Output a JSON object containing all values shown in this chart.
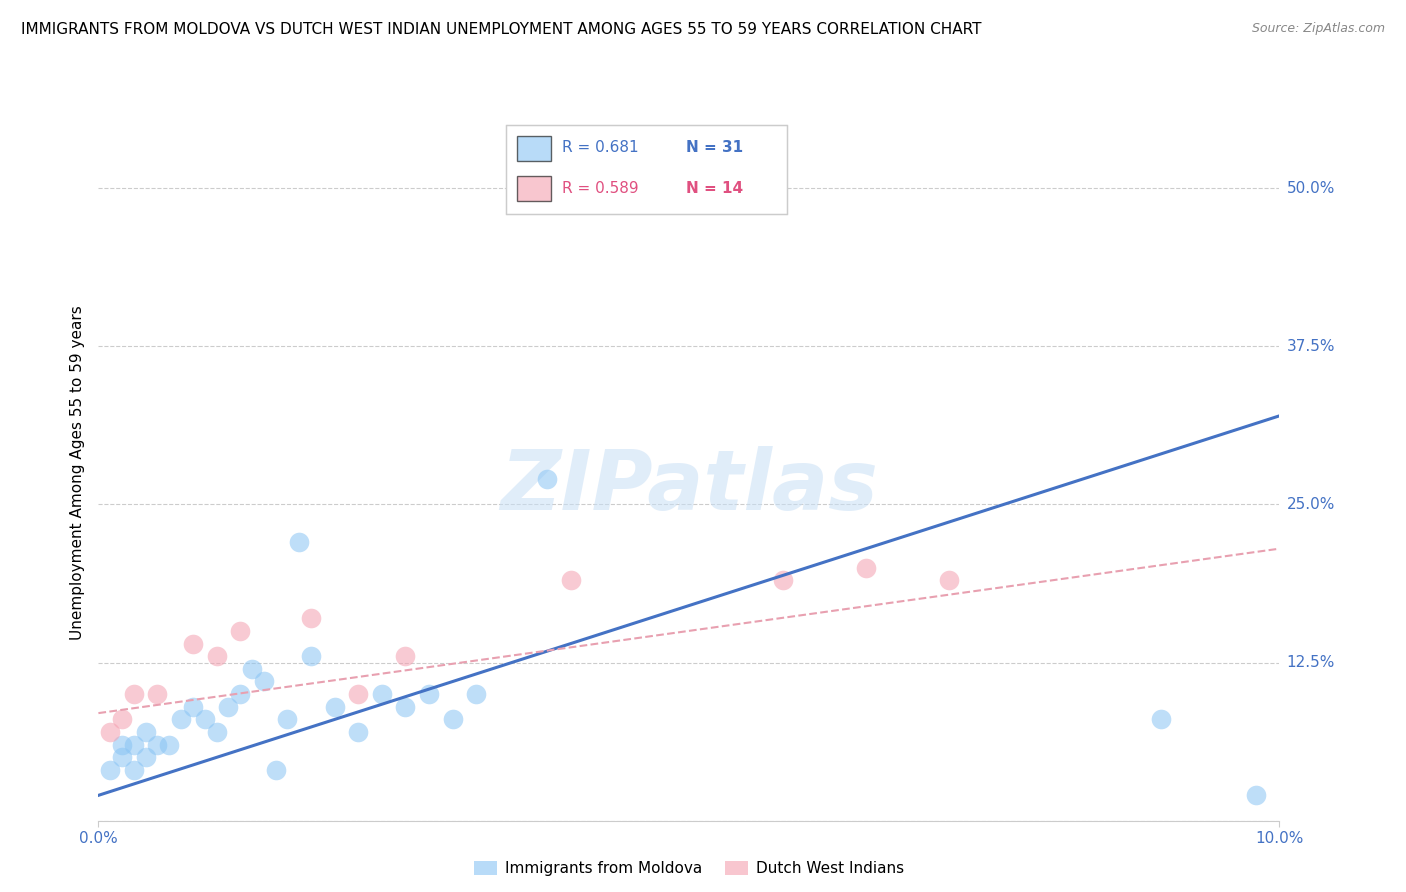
{
  "title": "IMMIGRANTS FROM MOLDOVA VS DUTCH WEST INDIAN UNEMPLOYMENT AMONG AGES 55 TO 59 YEARS CORRELATION CHART",
  "source": "Source: ZipAtlas.com",
  "ylabel": "Unemployment Among Ages 55 to 59 years",
  "xlim": [
    0.0,
    0.1
  ],
  "ylim": [
    0.0,
    0.55
  ],
  "yticks": [
    0.0,
    0.125,
    0.25,
    0.375,
    0.5
  ],
  "ytick_labels": [
    "",
    "12.5%",
    "25.0%",
    "37.5%",
    "50.0%"
  ],
  "watermark": "ZIPatlas",
  "legend_r1": "R = 0.681",
  "legend_n1": "N = 31",
  "legend_r2": "R = 0.589",
  "legend_n2": "N = 14",
  "legend_label1": "Immigrants from Moldova",
  "legend_label2": "Dutch West Indians",
  "color_blue": "#89c4f4",
  "color_pink": "#f4a0b0",
  "color_blue_line": "#4472c4",
  "color_pink_line": "#e8a0b0",
  "blue_scatter_x": [
    0.001,
    0.002,
    0.002,
    0.003,
    0.003,
    0.004,
    0.004,
    0.005,
    0.006,
    0.007,
    0.008,
    0.009,
    0.01,
    0.011,
    0.012,
    0.013,
    0.014,
    0.015,
    0.016,
    0.017,
    0.018,
    0.02,
    0.022,
    0.024,
    0.026,
    0.028,
    0.03,
    0.032,
    0.038,
    0.09,
    0.098
  ],
  "blue_scatter_y": [
    0.04,
    0.05,
    0.06,
    0.04,
    0.06,
    0.05,
    0.07,
    0.06,
    0.06,
    0.08,
    0.09,
    0.08,
    0.07,
    0.09,
    0.1,
    0.12,
    0.11,
    0.04,
    0.08,
    0.22,
    0.13,
    0.09,
    0.07,
    0.1,
    0.09,
    0.1,
    0.08,
    0.1,
    0.27,
    0.08,
    0.02
  ],
  "pink_scatter_x": [
    0.001,
    0.002,
    0.003,
    0.005,
    0.008,
    0.01,
    0.012,
    0.018,
    0.022,
    0.026,
    0.04,
    0.058,
    0.065,
    0.072
  ],
  "pink_scatter_y": [
    0.07,
    0.08,
    0.1,
    0.1,
    0.14,
    0.13,
    0.15,
    0.16,
    0.1,
    0.13,
    0.19,
    0.19,
    0.2,
    0.19
  ],
  "blue_line_x": [
    0.0,
    0.1
  ],
  "blue_line_y": [
    0.02,
    0.32
  ],
  "pink_line_x": [
    0.0,
    0.1
  ],
  "pink_line_y": [
    0.085,
    0.215
  ],
  "grid_color": "#cccccc",
  "title_fontsize": 11,
  "source_fontsize": 9,
  "tick_label_color": "#4472c4",
  "pink_text_color": "#e05080"
}
